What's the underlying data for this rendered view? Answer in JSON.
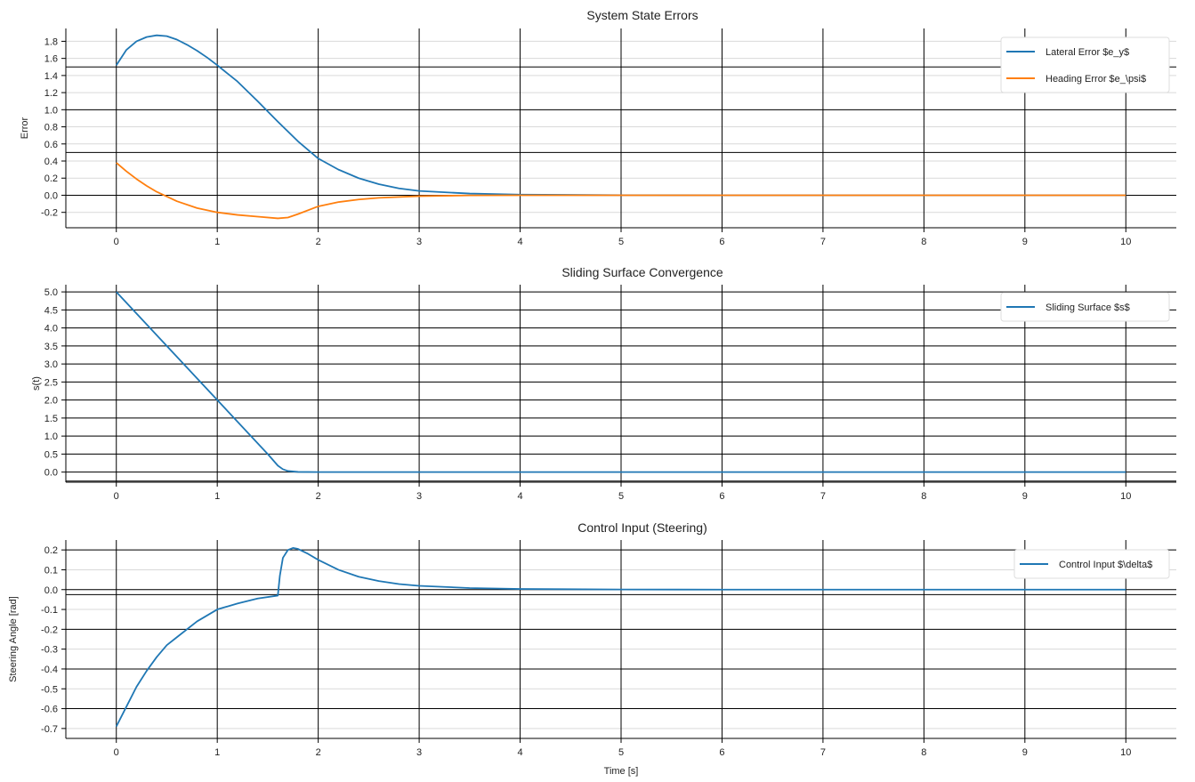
{
  "figure": {
    "xlabel": "Time [s]"
  },
  "chart_data": [
    {
      "type": "line",
      "title": "System State Errors",
      "xlabel": "",
      "ylabel": "Error",
      "xlim": [
        -0.5,
        10.5
      ],
      "ylim": [
        -0.38,
        1.95
      ],
      "xticks": [
        0,
        1,
        2,
        3,
        4,
        5,
        6,
        7,
        8,
        9,
        10
      ],
      "yticks": [
        -0.2,
        0.0,
        0.2,
        0.4,
        0.6,
        0.8,
        1.0,
        1.2,
        1.4,
        1.6,
        1.8
      ],
      "ytick_labels": [
        "-0.2",
        "0.0",
        "0.2",
        "0.4",
        "0.6",
        "0.8",
        "1.0",
        "1.2",
        "1.4",
        "1.6",
        "1.8"
      ],
      "grid": true,
      "legend": "top-right",
      "series": [
        {
          "name": "Lateral Error $e_y$",
          "color": "#1f77b4",
          "x": [
            0,
            0.1,
            0.2,
            0.3,
            0.4,
            0.5,
            0.6,
            0.7,
            0.8,
            0.9,
            1.0,
            1.2,
            1.4,
            1.6,
            1.8,
            2.0,
            2.2,
            2.4,
            2.6,
            2.8,
            3.0,
            3.5,
            4.0,
            5.0,
            6.0,
            7.0,
            8.0,
            9.0,
            10.0
          ],
          "y": [
            1.52,
            1.7,
            1.8,
            1.85,
            1.87,
            1.86,
            1.82,
            1.76,
            1.69,
            1.61,
            1.52,
            1.33,
            1.1,
            0.86,
            0.63,
            0.43,
            0.3,
            0.2,
            0.13,
            0.08,
            0.05,
            0.02,
            0.007,
            0.001,
            0.0,
            0.0,
            0.0,
            0.0,
            0.0
          ]
        },
        {
          "name": "Heading Error $e_\\psi$",
          "color": "#ff7f0e",
          "x": [
            0,
            0.1,
            0.2,
            0.3,
            0.4,
            0.6,
            0.8,
            1.0,
            1.2,
            1.4,
            1.6,
            1.7,
            1.8,
            2.0,
            2.2,
            2.4,
            2.6,
            3.0,
            3.5,
            4.0,
            5.0,
            6.0,
            7.0,
            8.0,
            9.0,
            10.0
          ],
          "y": [
            0.38,
            0.28,
            0.19,
            0.11,
            0.04,
            -0.07,
            -0.15,
            -0.2,
            -0.23,
            -0.25,
            -0.27,
            -0.26,
            -0.22,
            -0.13,
            -0.08,
            -0.05,
            -0.03,
            -0.01,
            -0.002,
            0.0,
            0.0,
            0.0,
            0.0,
            0.0,
            0.0,
            0.0
          ]
        }
      ],
      "extra_gridlines_y": [
        0.5,
        1.5
      ]
    },
    {
      "type": "line",
      "title": "Sliding Surface Convergence",
      "xlabel": "",
      "ylabel": "s(t)",
      "xlim": [
        -0.5,
        10.5
      ],
      "ylim": [
        -0.28,
        5.2
      ],
      "xticks": [
        0,
        1,
        2,
        3,
        4,
        5,
        6,
        7,
        8,
        9,
        10
      ],
      "yticks": [
        0.0,
        0.5,
        1.0,
        1.5,
        2.0,
        2.5,
        3.0,
        3.5,
        4.0,
        4.5,
        5.0
      ],
      "ytick_labels": [
        "0.0",
        "0.5",
        "1.0",
        "1.5",
        "2.0",
        "2.5",
        "3.0",
        "3.5",
        "4.0",
        "4.5",
        "5.0"
      ],
      "grid": true,
      "legend": "top-right",
      "series": [
        {
          "name": "Sliding Surface $s$",
          "color": "#1f77b4",
          "x": [
            0,
            0.5,
            1.0,
            1.5,
            1.6,
            1.65,
            1.7,
            1.8,
            2.0,
            3.0,
            4.0,
            5.0,
            6.0,
            7.0,
            8.0,
            9.0,
            10.0
          ],
          "y": [
            5.0,
            3.5,
            2.0,
            0.5,
            0.18,
            0.08,
            0.03,
            0.005,
            0.0,
            0.0,
            0.0,
            0.0,
            0.0,
            0.0,
            0.0,
            0.0,
            0.0
          ]
        }
      ],
      "extra_gridlines_y": []
    },
    {
      "type": "line",
      "title": "Control Input (Steering)",
      "xlabel": "Time [s]",
      "ylabel": "Steering Angle [rad]",
      "xlim": [
        -0.5,
        10.5
      ],
      "ylim": [
        -0.75,
        0.25
      ],
      "xticks": [
        0,
        1,
        2,
        3,
        4,
        5,
        6,
        7,
        8,
        9,
        10
      ],
      "yticks": [
        -0.7,
        -0.6,
        -0.5,
        -0.4,
        -0.3,
        -0.2,
        -0.1,
        0.0,
        0.1,
        0.2
      ],
      "ytick_labels": [
        "-0.7",
        "-0.6",
        "-0.5",
        "-0.4",
        "-0.3",
        "-0.2",
        "-0.1",
        "0.0",
        "0.1",
        "0.2"
      ],
      "grid": true,
      "legend": "top-right",
      "series": [
        {
          "name": "Control Input $\\delta$",
          "color": "#1f77b4",
          "x": [
            0,
            0.05,
            0.1,
            0.2,
            0.3,
            0.4,
            0.5,
            0.6,
            0.8,
            1.0,
            1.2,
            1.4,
            1.6,
            1.62,
            1.65,
            1.7,
            1.75,
            1.8,
            1.9,
            2.0,
            2.2,
            2.4,
            2.6,
            2.8,
            3.0,
            3.5,
            4.0,
            5.0,
            6.0,
            7.0,
            8.0,
            9.0,
            10.0
          ],
          "y": [
            -0.69,
            -0.64,
            -0.59,
            -0.49,
            -0.41,
            -0.34,
            -0.28,
            -0.24,
            -0.16,
            -0.1,
            -0.07,
            -0.045,
            -0.03,
            0.07,
            0.16,
            0.2,
            0.21,
            0.205,
            0.18,
            0.15,
            0.1,
            0.065,
            0.043,
            0.028,
            0.019,
            0.008,
            0.003,
            0.0005,
            0.0,
            0.0,
            0.0,
            0.0,
            0.0
          ]
        }
      ],
      "extra_gridlines_y": [
        -0.025,
        -0.4
      ]
    }
  ]
}
